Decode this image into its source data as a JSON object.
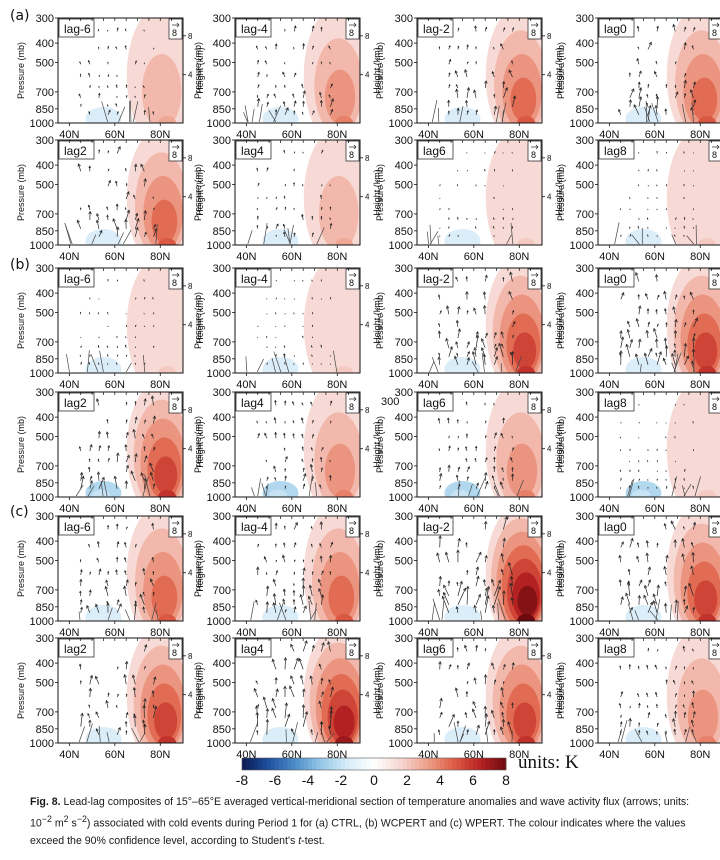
{
  "chart_data": {
    "type": "heatmap",
    "title": "Lead-lag composites of vertical-meridional section of temperature anomalies and wave activity flux",
    "xlabel": "",
    "ylabel": "Pressure (mb)",
    "y2label": "Height (km)",
    "x_ticks": [
      "40N",
      "60N",
      "80N"
    ],
    "x_range": [
      35,
      90
    ],
    "y_ticks": [
      "300",
      "400",
      "500",
      "700",
      "850",
      "1000"
    ],
    "y_range": [
      1000,
      300
    ],
    "y2_ticks": [
      "4",
      "8"
    ],
    "reference_arrow_label": "8",
    "colorbar": {
      "label": "units: K",
      "ticks": [
        "-8",
        "-6",
        "-4",
        "-2",
        "0",
        "2",
        "4",
        "6",
        "8"
      ],
      "range": [
        -8,
        8
      ],
      "colormap": "blue-white-red"
    },
    "groups": [
      {
        "label": "(a)",
        "name": "CTRL",
        "panels": [
          {
            "lag": "lag-6",
            "warm_max": 2,
            "cold_max": -1
          },
          {
            "lag": "lag-4",
            "warm_max": 3,
            "cold_max": -1
          },
          {
            "lag": "lag-2",
            "warm_max": 4,
            "cold_max": -1
          },
          {
            "lag": "lag0",
            "warm_max": 4,
            "cold_max": -1
          },
          {
            "lag": "lag2",
            "warm_max": 4,
            "cold_max": -1
          },
          {
            "lag": "lag4",
            "warm_max": 2,
            "cold_max": -1
          },
          {
            "lag": "lag6",
            "warm_max": 1,
            "cold_max": -1
          },
          {
            "lag": "lag8",
            "warm_max": 1,
            "cold_max": -1
          }
        ]
      },
      {
        "label": "(b)",
        "name": "WCPERT",
        "panels": [
          {
            "lag": "lag-6",
            "warm_max": 1,
            "cold_max": -1
          },
          {
            "lag": "lag-4",
            "warm_max": 1,
            "cold_max": -1
          },
          {
            "lag": "lag-2",
            "warm_max": 5,
            "cold_max": -1
          },
          {
            "lag": "lag0",
            "warm_max": 5,
            "cold_max": -1
          },
          {
            "lag": "lag2",
            "warm_max": 5,
            "cold_max": -2
          },
          {
            "lag": "lag4",
            "warm_max": 3,
            "cold_max": -2
          },
          {
            "lag": "lag6",
            "warm_max": 3,
            "cold_max": -2
          },
          {
            "lag": "lag8",
            "warm_max": 1,
            "cold_max": -2
          }
        ]
      },
      {
        "label": "(c)",
        "name": "WPERT",
        "panels": [
          {
            "lag": "lag-6",
            "warm_max": 4,
            "cold_max": -1
          },
          {
            "lag": "lag-4",
            "warm_max": 4,
            "cold_max": -1
          },
          {
            "lag": "lag-2",
            "warm_max": 7,
            "cold_max": -1
          },
          {
            "lag": "lag0",
            "warm_max": 5,
            "cold_max": -1
          },
          {
            "lag": "lag2",
            "warm_max": 5,
            "cold_max": -1
          },
          {
            "lag": "lag4",
            "warm_max": 6,
            "cold_max": -1
          },
          {
            "lag": "lag6",
            "warm_max": 5,
            "cold_max": -1
          },
          {
            "lag": "lag8",
            "warm_max": 3,
            "cold_max": -1
          }
        ]
      }
    ]
  },
  "stray_label": "300",
  "caption": {
    "fig_label": "Fig. 8.",
    "text_1": " Lead-lag composites of 15°–65°E averaged vertical-meridional section of temperature anomalies and wave activity flux (arrows; units: 10",
    "sup_1": "−2",
    "text_2": " m",
    "sup_2": "2",
    "text_3": " s",
    "sup_3": "−2",
    "text_4": ") associated with cold events during Period 1 for (a) CTRL, (b) WCPERT and (c) WPERT. The colour indicates where the values exceed the 90% confidence level, according to Student's ",
    "t_italic": "t",
    "text_5": "-test."
  }
}
